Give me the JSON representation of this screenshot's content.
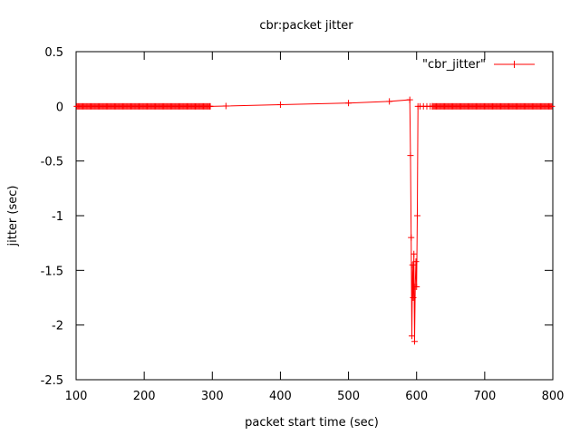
{
  "chart_data": {
    "type": "line",
    "title": "cbr:packet jitter",
    "xlabel": "packet start time (sec)",
    "ylabel": "jitter (sec)",
    "xlim": [
      100,
      800
    ],
    "ylim": [
      -2.5,
      0.5
    ],
    "x_ticks": [
      {
        "value": 100,
        "label": "100"
      },
      {
        "value": 200,
        "label": "200"
      },
      {
        "value": 300,
        "label": "300"
      },
      {
        "value": 400,
        "label": "400"
      },
      {
        "value": 500,
        "label": "500"
      },
      {
        "value": 600,
        "label": "600"
      },
      {
        "value": 700,
        "label": "700"
      },
      {
        "value": 800,
        "label": "800"
      }
    ],
    "y_ticks": [
      {
        "value": 0.5,
        "label": "0.5"
      },
      {
        "value": 0,
        "label": "0"
      },
      {
        "value": -0.5,
        "label": "-0.5"
      },
      {
        "value": -1,
        "label": "-1"
      },
      {
        "value": -1.5,
        "label": "-1.5"
      },
      {
        "value": -2,
        "label": "-2"
      },
      {
        "value": -2.5,
        "label": "-2.5"
      }
    ],
    "grid": false,
    "legend_position": "top-right",
    "color": "#ff0000",
    "series": [
      {
        "name": "\"cbr_jitter\"",
        "marker": "plus",
        "segments": [
          {
            "from": 101,
            "to": 297,
            "step": 1.5,
            "y": 0
          },
          {
            "from": 623,
            "to": 799,
            "step": 1.5,
            "y": 0
          }
        ],
        "points": [
          [
            297,
            0
          ],
          [
            320,
            0.003
          ],
          [
            400,
            0.015
          ],
          [
            500,
            0.03
          ],
          [
            560,
            0.045
          ],
          [
            590,
            0.06
          ],
          [
            591,
            -0.45
          ],
          [
            592,
            -1.2
          ],
          [
            593,
            -2.1
          ],
          [
            594,
            -1.45
          ],
          [
            595,
            -1.75
          ],
          [
            596,
            -1.35
          ],
          [
            597,
            -2.15
          ],
          [
            598,
            -1.65
          ],
          [
            599,
            -1.42
          ],
          [
            600,
            -1.65
          ],
          [
            601,
            -1.0
          ],
          [
            602,
            0
          ],
          [
            605,
            0
          ],
          [
            610,
            0
          ],
          [
            615,
            0
          ],
          [
            620,
            0
          ],
          [
            623,
            0
          ]
        ]
      }
    ]
  }
}
